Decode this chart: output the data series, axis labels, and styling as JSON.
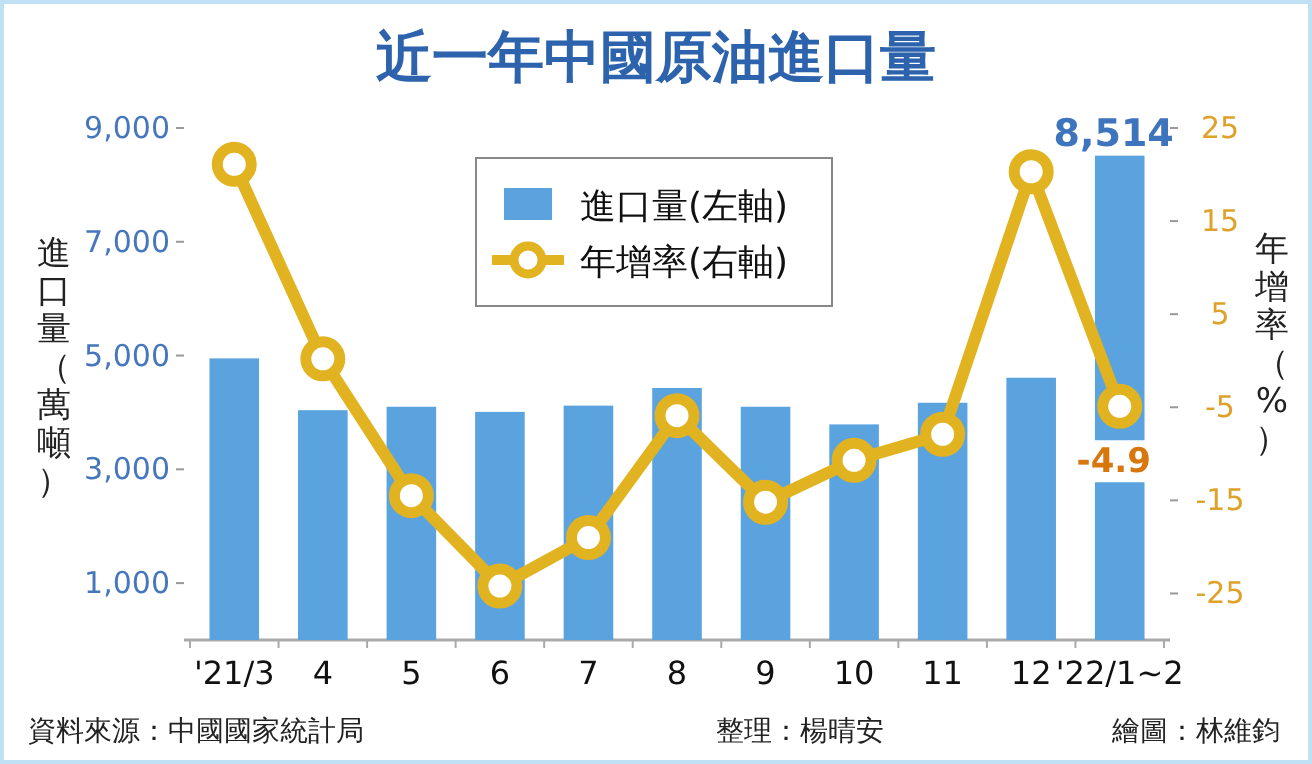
{
  "chart_data": {
    "type": "bar",
    "title": "近一年中國原油進口量",
    "ylabel": "進口量（萬噸）",
    "y2label": "年增率（%）",
    "categories": [
      "'21/3",
      "4",
      "5",
      "6",
      "7",
      "8",
      "9",
      "10",
      "11",
      "12",
      "'22/1~2"
    ],
    "series": [
      {
        "name": "進口量(左軸)",
        "color": "#5ba3df",
        "values": [
          4950,
          4040,
          4100,
          4010,
          4120,
          4430,
          4100,
          3790,
          4170,
          4610,
          8514
        ],
        "value_labels": [
          null,
          null,
          null,
          null,
          null,
          null,
          null,
          null,
          null,
          null,
          "8,514"
        ]
      },
      {
        "name": "年增率(右軸)",
        "type": "line",
        "axis": "y2",
        "color": "#e2b321",
        "marker": "circle",
        "values": [
          21.1,
          0.2,
          -14.5,
          -24.2,
          -19.0,
          -5.9,
          -15.2,
          -10.7,
          -7.9,
          20.3,
          -4.9
        ],
        "value_labels": [
          null,
          null,
          null,
          null,
          null,
          null,
          null,
          null,
          null,
          null,
          "-4.9"
        ]
      }
    ],
    "ylim": [
      0,
      9000
    ],
    "yticks": [
      {
        "value": 1000,
        "label": "1,000"
      },
      {
        "value": 3000,
        "label": "3,000"
      },
      {
        "value": 5000,
        "label": "5,000"
      },
      {
        "value": 7000,
        "label": "7,000"
      },
      {
        "value": 9000,
        "label": "9,000"
      }
    ],
    "y2lim": [
      -30,
      25
    ],
    "y2ticks": [
      25,
      15,
      5,
      -5,
      -15,
      -25
    ],
    "legend": "top",
    "annotations": [
      "資料來源：中國國家統計局",
      "整理：楊晴安",
      "繪圖：林維鈞"
    ]
  }
}
